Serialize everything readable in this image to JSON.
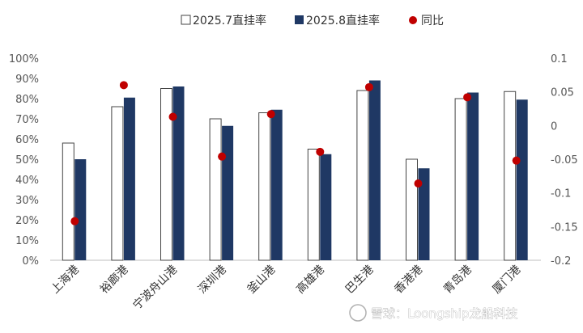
{
  "chart_data": {
    "type": "bar",
    "categories": [
      "上海港",
      "裕廊港",
      "宁波舟山港",
      "深圳港",
      "釜山港",
      "高雄港",
      "巴生港",
      "香港港",
      "青岛港",
      "厦门港"
    ],
    "series": [
      {
        "name": "2025.7直挂率",
        "type": "bar",
        "axis": "left",
        "color": "#ffffff",
        "stroke": "#444444",
        "values": [
          58,
          76,
          85,
          70,
          73,
          55,
          84,
          50,
          80,
          83.5
        ]
      },
      {
        "name": "2025.8直挂率",
        "type": "bar",
        "axis": "left",
        "color": "#1f3864",
        "values": [
          50,
          80.5,
          86,
          66.5,
          74.5,
          52.5,
          89,
          45.5,
          83,
          79.5
        ]
      },
      {
        "name": "同比",
        "type": "scatter",
        "axis": "right",
        "color": "#c00000",
        "values": [
          -0.142,
          0.06,
          0.013,
          -0.046,
          0.017,
          -0.039,
          0.057,
          -0.086,
          0.042,
          -0.052
        ]
      }
    ],
    "left_axis": {
      "min": 0,
      "max": 100,
      "step": 10,
      "ticks": [
        "0%",
        "10%",
        "20%",
        "30%",
        "40%",
        "50%",
        "60%",
        "70%",
        "80%",
        "90%",
        "100%"
      ]
    },
    "right_axis": {
      "min": -0.2,
      "max": 0.1,
      "ticks": [
        "-0.2",
        "-0.15",
        "-0.1",
        "-0.05",
        "0",
        "0.05",
        "0.1"
      ]
    },
    "legend_position": "top",
    "grid": false
  },
  "watermark": "雪球：Loongship龙船科技"
}
